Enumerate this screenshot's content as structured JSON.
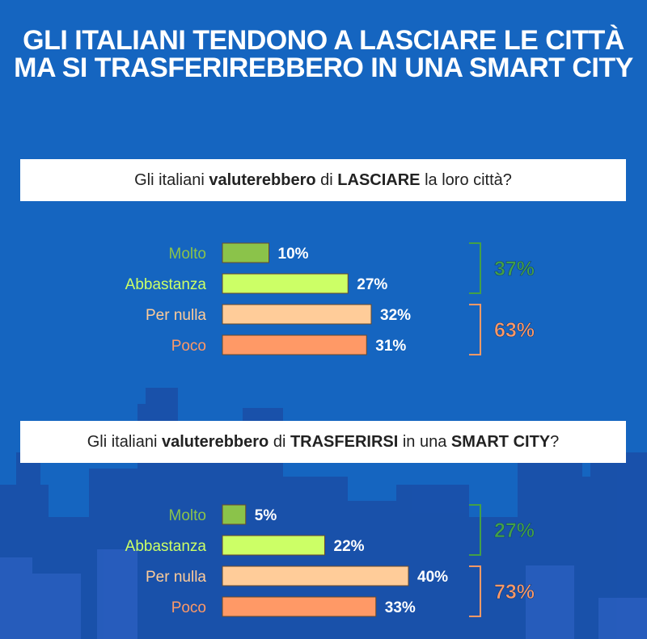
{
  "title": {
    "line1": "GLI ITALIANI TENDONO A LASCIARE LE CITTÀ",
    "line2": "MA SI TRASFERIREBBERO IN UNA SMART CITY"
  },
  "colors": {
    "background": "#1565c0",
    "molto": "#8bc34a",
    "abbastanza": "#ccff66",
    "per_nulla": "#ffcc99",
    "poco": "#ff9966",
    "positive_total": "#43a047",
    "negative_total": "#ff9966"
  },
  "chart_data": [
    {
      "type": "bar",
      "orientation": "horizontal",
      "question": {
        "p1": "Gli italiani ",
        "b1": "valuterebbero",
        "p2": " di ",
        "b2": "LASCIARE",
        "p3": " la loro città?"
      },
      "categories": [
        "Molto",
        "Abbastanza",
        "Per nulla",
        "Poco"
      ],
      "values": [
        10,
        27,
        32,
        31
      ],
      "value_labels": [
        "10%",
        "27%",
        "32%",
        "31%"
      ],
      "groups": [
        {
          "label": "37%",
          "value": 37,
          "members": [
            "Molto",
            "Abbastanza"
          ]
        },
        {
          "label": "63%",
          "value": 63,
          "members": [
            "Per nulla",
            "Poco"
          ]
        }
      ]
    },
    {
      "type": "bar",
      "orientation": "horizontal",
      "question": {
        "p1": "Gli italiani ",
        "b1": "valuterebbero",
        "p2": " di ",
        "b2": "TRASFERIRSI",
        "p3": " in una ",
        "b3": "SMART CITY",
        "p4": "?"
      },
      "categories": [
        "Molto",
        "Abbastanza",
        "Per nulla",
        "Poco"
      ],
      "values": [
        5,
        22,
        40,
        33
      ],
      "value_labels": [
        "5%",
        "22%",
        "40%",
        "33%"
      ],
      "groups": [
        {
          "label": "27%",
          "value": 27,
          "members": [
            "Molto",
            "Abbastanza"
          ]
        },
        {
          "label": "73%",
          "value": 73,
          "members": [
            "Per nulla",
            "Poco"
          ]
        }
      ]
    }
  ]
}
